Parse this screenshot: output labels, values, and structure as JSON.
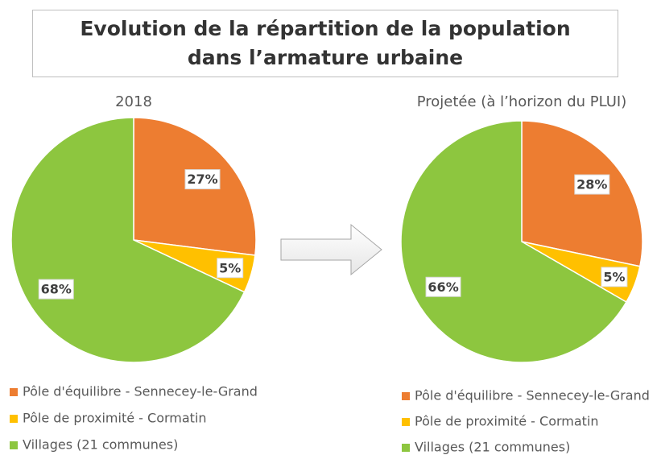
{
  "title": "Evolution de la répartition de la population dans l’armature urbaine",
  "chart_data": [
    {
      "type": "pie",
      "title": "2018",
      "categories": [
        "Pôle d'équilibre - Sennecey-le-Grand",
        "Pôle de proximité - Cormatin",
        "Villages (21 communes)"
      ],
      "values": [
        27,
        5,
        68
      ],
      "value_labels": [
        "27%",
        "5%",
        "68%"
      ],
      "colors": [
        "#ED7D31",
        "#FFC000",
        "#8DC63F"
      ]
    },
    {
      "type": "pie",
      "title": "Projetée (à l’horizon du PLUI)",
      "categories": [
        "Pôle d'équilibre - Sennecey-le-Grand",
        "Pôle de proximité - Cormatin",
        "Villages (21 communes)"
      ],
      "values": [
        28,
        5,
        66
      ],
      "value_labels": [
        "28%",
        "5%",
        "66%"
      ],
      "colors": [
        "#ED7D31",
        "#FFC000",
        "#8DC63F"
      ]
    }
  ]
}
